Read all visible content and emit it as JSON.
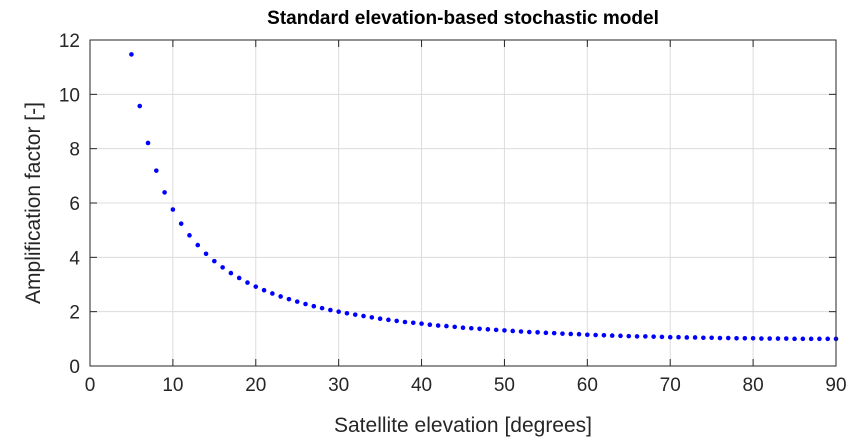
{
  "chart_data": {
    "type": "scatter",
    "title": "Standard elevation-based stochastic model",
    "xlabel": "Satellite elevation [degrees]",
    "ylabel": "Amplification factor [-]",
    "xlim": [
      0,
      90
    ],
    "ylim": [
      0,
      12
    ],
    "xticks": [
      0,
      10,
      20,
      30,
      40,
      50,
      60,
      70,
      80,
      90
    ],
    "yticks": [
      0,
      2,
      4,
      6,
      8,
      10,
      12
    ],
    "grid": true,
    "marker_color": "#0000ff",
    "series": [
      {
        "x": [
          5,
          6,
          7,
          8,
          9,
          10,
          11,
          12,
          13,
          14,
          15,
          16,
          17,
          18,
          19,
          20,
          21,
          22,
          23,
          24,
          25,
          26,
          27,
          28,
          29,
          30,
          31,
          32,
          33,
          34,
          35,
          36,
          37,
          38,
          39,
          40,
          41,
          42,
          43,
          44,
          45,
          46,
          47,
          48,
          49,
          50,
          51,
          52,
          53,
          54,
          55,
          56,
          57,
          58,
          59,
          60,
          61,
          62,
          63,
          64,
          65,
          66,
          67,
          68,
          69,
          70,
          71,
          72,
          73,
          74,
          75,
          76,
          77,
          78,
          79,
          80,
          81,
          82,
          83,
          84,
          85,
          86,
          87,
          88,
          89,
          90
        ],
        "y": [
          11.47,
          9.57,
          8.21,
          7.19,
          6.39,
          5.76,
          5.24,
          4.81,
          4.45,
          4.13,
          3.86,
          3.63,
          3.42,
          3.24,
          3.07,
          2.92,
          2.79,
          2.67,
          2.56,
          2.46,
          2.37,
          2.28,
          2.2,
          2.13,
          2.06,
          2.0,
          1.94,
          1.89,
          1.84,
          1.79,
          1.74,
          1.7,
          1.66,
          1.62,
          1.59,
          1.56,
          1.52,
          1.49,
          1.47,
          1.44,
          1.41,
          1.39,
          1.37,
          1.35,
          1.33,
          1.31,
          1.29,
          1.27,
          1.25,
          1.24,
          1.22,
          1.21,
          1.19,
          1.18,
          1.17,
          1.15,
          1.14,
          1.13,
          1.12,
          1.11,
          1.1,
          1.09,
          1.09,
          1.08,
          1.07,
          1.06,
          1.06,
          1.05,
          1.05,
          1.04,
          1.04,
          1.03,
          1.03,
          1.02,
          1.02,
          1.02,
          1.01,
          1.01,
          1.01,
          1.01,
          1.0,
          1.0,
          1.0,
          1.0,
          1.0,
          1.0
        ]
      }
    ]
  }
}
